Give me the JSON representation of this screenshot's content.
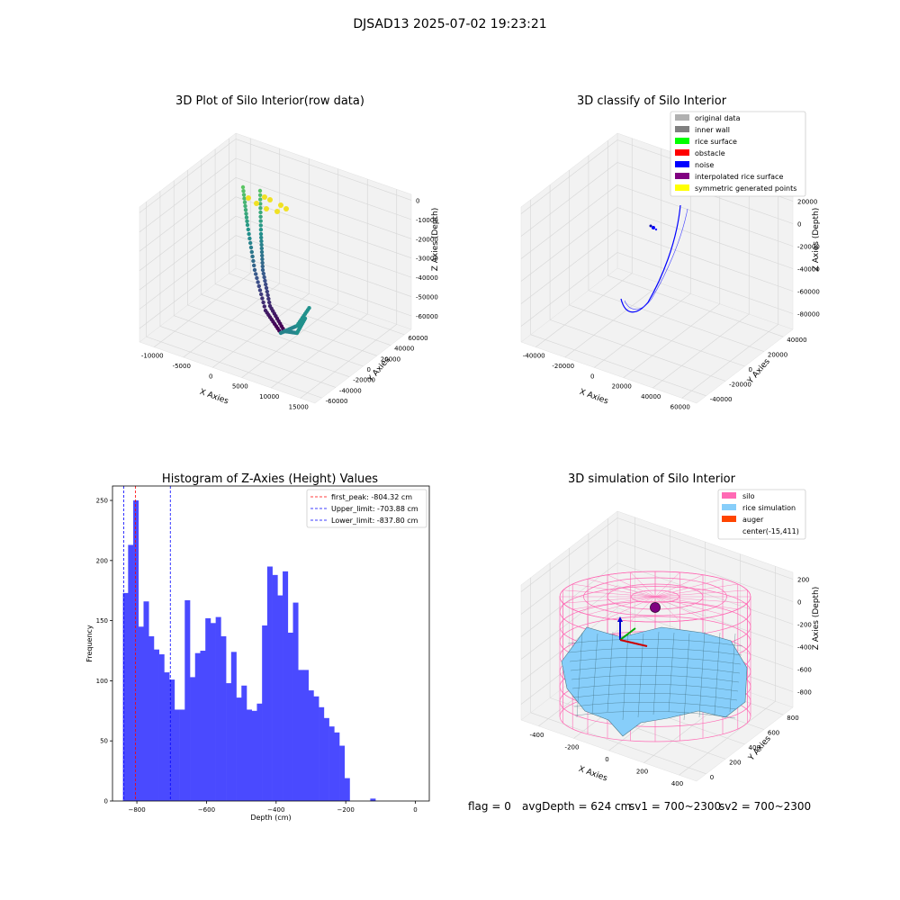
{
  "suptitle": "DJSAD13 2025-07-02 19:23:21",
  "status_line": {
    "flag": "flag = 0",
    "avg": "avgDepth = 624 cm",
    "sv1": "sv1 = 700~2300",
    "sv2": "sv2 = 700~2300"
  },
  "colors": {
    "hist_bar": "#4a4aff",
    "peak_line": "#ff0000",
    "limit_line": "#0000ff",
    "pane": "#f2f2f2",
    "grid": "#d6d6d6",
    "silo": "#ff69b4",
    "rice": "#87cefa",
    "auger": "#ff4500"
  },
  "chart_data": [
    {
      "type": "scatter",
      "dims": 3,
      "title": "3D Plot of Silo Interior(row data)",
      "xlabel": "X Axies",
      "ylabel": "Y Axies",
      "zlabel": "Z Axies (Depth)",
      "x_ticks": [
        "-10000",
        "-5000",
        "0",
        "5000",
        "10000",
        "15000"
      ],
      "y_ticks": [
        "-60000",
        "-40000",
        "-20000",
        "0",
        "20000",
        "40000",
        "60000"
      ],
      "z_ticks": [
        "0",
        "-10000",
        "-20000",
        "-30000",
        "-40000",
        "-50000",
        "-60000"
      ],
      "colormap": "viridis"
    },
    {
      "type": "scatter",
      "dims": 3,
      "title": "3D classify of Silo Interior",
      "xlabel": "X Axies",
      "ylabel": "Y Axies",
      "zlabel": "Z Axies (Depth)",
      "x_ticks": [
        "-40000",
        "-20000",
        "0",
        "20000",
        "40000",
        "60000"
      ],
      "y_ticks": [
        "-40000",
        "-20000",
        "0",
        "20000",
        "40000"
      ],
      "z_ticks": [
        "20000",
        "0",
        "-20000",
        "-40000",
        "-60000",
        "-80000"
      ],
      "legend": [
        {
          "label": "original data",
          "color": "#b0b0b0"
        },
        {
          "label": "inner wall",
          "color": "#808080"
        },
        {
          "label": "rice surface",
          "color": "#00ff00"
        },
        {
          "label": "obstacle",
          "color": "#ff0000"
        },
        {
          "label": "noise",
          "color": "#0000ff"
        },
        {
          "label": "interpolated rice surface",
          "color": "#800080"
        },
        {
          "label": "symmetric generated points",
          "color": "#ffff00"
        }
      ],
      "legend_position": "upper right"
    },
    {
      "type": "bar",
      "subtype": "histogram",
      "title": "Histogram of Z-Axies (Height) Values",
      "xlabel": "Depth (cm)",
      "ylabel": "Frequency",
      "xlim": [
        -870,
        40
      ],
      "ylim": [
        0,
        262
      ],
      "x_ticks": [
        -800,
        -600,
        -400,
        -200,
        0
      ],
      "y_ticks": [
        0,
        50,
        100,
        150,
        200,
        250
      ],
      "bin_start": -840,
      "bin_width": 14.8,
      "values": [
        173,
        213,
        250,
        145,
        166,
        137,
        126,
        122,
        107,
        101,
        76,
        76,
        167,
        103,
        123,
        125,
        152,
        148,
        153,
        137,
        98,
        124,
        86,
        96,
        76,
        75,
        81,
        146,
        195,
        188,
        171,
        191,
        140,
        165,
        109,
        109,
        92,
        87,
        78,
        69,
        62,
        57,
        46,
        19,
        0,
        0,
        0,
        0,
        2
      ],
      "vlines": [
        {
          "label": "first_peak: -804.32 cm",
          "x": -804.32,
          "color": "#ff0000"
        },
        {
          "label": "Upper_limit: -703.88 cm",
          "x": -703.88,
          "color": "#0000ff"
        },
        {
          "label": "Lower_limit: -837.80 cm",
          "x": -837.8,
          "color": "#0000ff"
        }
      ],
      "legend_position": "upper right"
    },
    {
      "type": "surface",
      "dims": 3,
      "title": "3D simulation of Silo Interior",
      "xlabel": "X Axies",
      "ylabel": "Y Axies",
      "zlabel": "Z Axies (Depth)",
      "x_ticks": [
        "-400",
        "-200",
        "0",
        "200",
        "400"
      ],
      "y_ticks": [
        "0",
        "200",
        "400",
        "600",
        "800"
      ],
      "z_ticks": [
        "200",
        "0",
        "-200",
        "-400",
        "-600",
        "-800"
      ],
      "legend": [
        {
          "label": "silo",
          "color": "#ff69b4"
        },
        {
          "label": "rice simulation",
          "color": "#87cefa"
        },
        {
          "label": "auger",
          "color": "#ff4500"
        },
        {
          "label": "center(-15,411)",
          "color": ""
        }
      ],
      "legend_position": "upper right"
    }
  ]
}
